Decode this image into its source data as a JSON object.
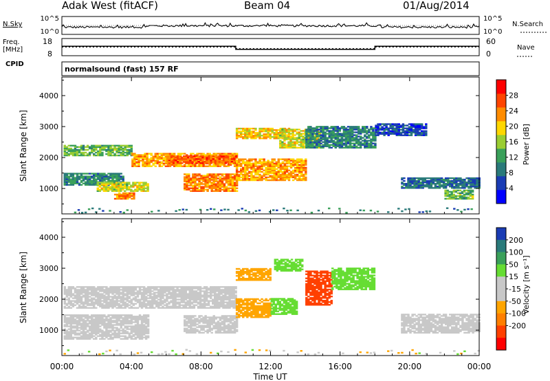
{
  "header": {
    "station": "Adak West (fitACF)",
    "beam": "Beam 04",
    "date": "01/Aug/2014"
  },
  "labels": {
    "nsky": "N.Sky",
    "nsearch": "N.Search",
    "freq_line1": "Freq.",
    "freq_line2": "[MHz]",
    "nave": "Nave",
    "cpid": "CPID",
    "cpid_value": "normalsound (fast) 157 RF",
    "ylabel": "Slant Range [km]",
    "xlabel": "Time UT",
    "power_label": "Power [dB]",
    "velocity_label": "Velocity [m s⁻¹]"
  },
  "noise_axis": {
    "left": [
      "10^5",
      "10^0"
    ],
    "right": [
      "10^5",
      "10^0"
    ]
  },
  "freq_axis": {
    "left": [
      "18",
      "8"
    ],
    "right": [
      "60",
      "0"
    ]
  },
  "colors": {
    "power_scale": [
      "#0000ff",
      "#1a3cb4",
      "#2a7a7a",
      "#3aa05a",
      "#9acd32",
      "#ffd700",
      "#ff8c00",
      "#ff4500",
      "#ff0000"
    ],
    "velocity_scale": [
      "#1a3cb4",
      "#2a7a7a",
      "#3aa05a",
      "#66dd33",
      "#c8c8c8",
      "#c8c8c8",
      "#ffa500",
      "#ff7f00",
      "#ff4000",
      "#ff0000"
    ]
  },
  "chart_data": {
    "type": "heatmap",
    "x_ticks": [
      "00:00",
      "04:00",
      "08:00",
      "12:00",
      "16:00",
      "20:00",
      "00:00"
    ],
    "xlim": [
      0,
      24
    ],
    "y_ticks": [
      1000,
      2000,
      3000,
      4000
    ],
    "ylim": [
      180,
      4600
    ],
    "power_colorbar": {
      "ticks": [
        4,
        8,
        12,
        16,
        20,
        24,
        28
      ],
      "range": [
        0,
        32
      ]
    },
    "velocity_colorbar": {
      "ticks": [
        -200,
        -100,
        -50,
        -15,
        15,
        50,
        100,
        200
      ]
    },
    "frequency": {
      "x": [
        0,
        10,
        10,
        18,
        18,
        24
      ],
      "y": [
        13.5,
        13.5,
        11.7,
        11.7,
        13.5,
        13.5
      ]
    },
    "nave": {
      "x": [
        0,
        10,
        10,
        18,
        18,
        24
      ],
      "y": [
        30,
        30,
        25,
        25,
        30,
        30
      ]
    },
    "power_bands": [
      {
        "t0": 0.1,
        "t1": 4.0,
        "r0": 2050,
        "r1": 2400,
        "p": 14
      },
      {
        "t0": 4.0,
        "t1": 10.0,
        "r0": 1700,
        "r1": 2150,
        "p": 22
      },
      {
        "t0": 6.0,
        "t1": 10.0,
        "r0": 1800,
        "r1": 2050,
        "p": 26
      },
      {
        "t0": 0.1,
        "t1": 3.5,
        "r0": 1100,
        "r1": 1500,
        "p": 10
      },
      {
        "t0": 2.0,
        "t1": 5.0,
        "r0": 900,
        "r1": 1200,
        "p": 18
      },
      {
        "t0": 3.0,
        "t1": 4.2,
        "r0": 650,
        "r1": 850,
        "p": 24
      },
      {
        "t0": 7.0,
        "t1": 10.0,
        "r0": 900,
        "r1": 1450,
        "p": 24
      },
      {
        "t0": 10.0,
        "t1": 14.0,
        "r0": 1250,
        "r1": 1950,
        "p": 22
      },
      {
        "t0": 10.0,
        "t1": 13.0,
        "r0": 2600,
        "r1": 2950,
        "p": 20
      },
      {
        "t0": 12.5,
        "t1": 14.8,
        "r0": 2300,
        "r1": 2900,
        "p": 18
      },
      {
        "t0": 14.0,
        "t1": 18.0,
        "r0": 2300,
        "r1": 3000,
        "p": 10
      },
      {
        "t0": 18.0,
        "t1": 21.0,
        "r0": 2700,
        "r1": 3100,
        "p": 6
      },
      {
        "t0": 19.5,
        "t1": 24.0,
        "r0": 1000,
        "r1": 1350,
        "p": 8
      },
      {
        "t0": 22.0,
        "t1": 23.6,
        "r0": 650,
        "r1": 950,
        "p": 14
      }
    ],
    "velocity_bands": [
      {
        "t0": 0.1,
        "t1": 10.0,
        "r0": 1700,
        "r1": 2400,
        "v": 0
      },
      {
        "t0": 0.1,
        "t1": 5.0,
        "r0": 700,
        "r1": 1500,
        "v": 0
      },
      {
        "t0": 7.0,
        "t1": 10.0,
        "r0": 900,
        "r1": 1450,
        "v": 0
      },
      {
        "t0": 10.0,
        "t1": 12.0,
        "r0": 1400,
        "r1": 2000,
        "v": -40
      },
      {
        "t0": 12.0,
        "t1": 13.5,
        "r0": 1500,
        "r1": 2000,
        "v": 40
      },
      {
        "t0": 10.0,
        "t1": 12.0,
        "r0": 2600,
        "r1": 3000,
        "v": -40
      },
      {
        "t0": 12.2,
        "t1": 13.8,
        "r0": 2900,
        "r1": 3300,
        "v": 40
      },
      {
        "t0": 14.0,
        "t1": 15.5,
        "r0": 1800,
        "r1": 2900,
        "v": -60
      },
      {
        "t0": 15.5,
        "t1": 18.0,
        "r0": 2300,
        "r1": 3000,
        "v": 30
      },
      {
        "t0": 19.5,
        "t1": 24.0,
        "r0": 900,
        "r1": 1500,
        "v": 0
      }
    ]
  }
}
